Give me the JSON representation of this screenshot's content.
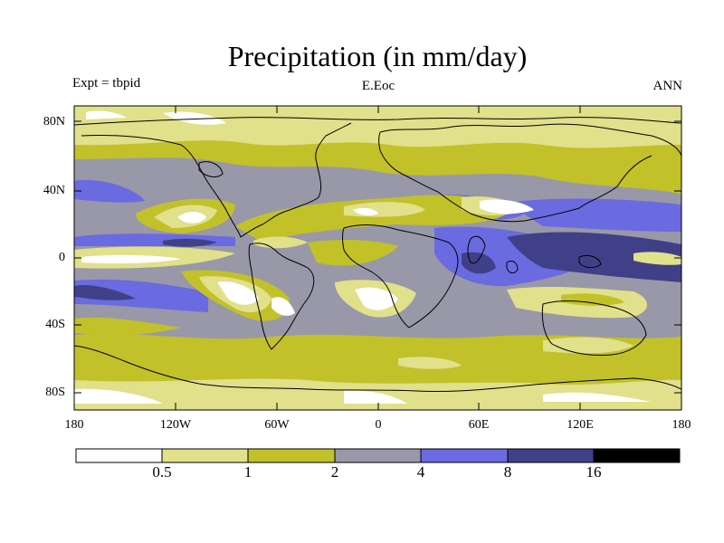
{
  "title": "Precipitation (in mm/day)",
  "experiment_label": "Expt = tbpid",
  "case_label": "E.Eoc",
  "season_label": "ANN",
  "latitude_labels": [
    "80N",
    "40N",
    "0",
    "40S",
    "80S"
  ],
  "longitude_labels": [
    "180",
    "120W",
    "60W",
    "0",
    "60E",
    "120E",
    "180"
  ],
  "colorbar": {
    "colors": [
      "#ffffff",
      "#e1e08b",
      "#c2c12a",
      "#9898a9",
      "#6a6ae1",
      "#404088",
      "#000000"
    ],
    "boundaries": [
      "0.5",
      "1",
      "2",
      "4",
      "8",
      "16"
    ]
  },
  "palette": {
    "very_dry": "#ffffff",
    "dry": "#e1e08b",
    "moderate": "#c2c12a",
    "wet": "#9898a9",
    "very_wet": "#6a6ae1",
    "extreme": "#404088"
  }
}
